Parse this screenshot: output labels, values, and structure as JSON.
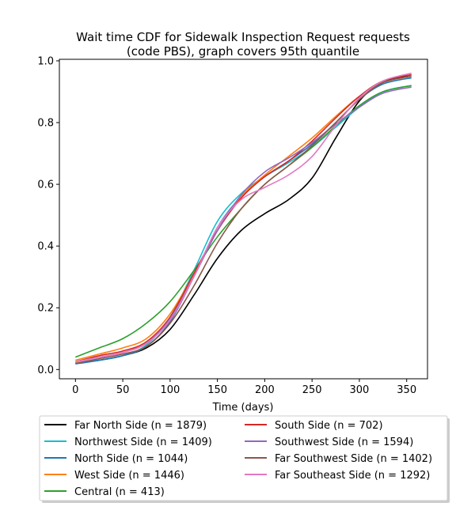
{
  "chart_data": {
    "type": "line",
    "title_line1": "Wait time CDF for Sidewalk Inspection Request  requests",
    "title_line2": "(code PBS), graph covers 95th quantile",
    "xlabel": "Time (days)",
    "ylabel": "",
    "xlim": [
      -17,
      372
    ],
    "ylim": [
      -0.03,
      1.005
    ],
    "xticks": [
      0,
      50,
      100,
      150,
      200,
      250,
      300,
      350
    ],
    "yticks": [
      0.0,
      0.2,
      0.4,
      0.6,
      0.8,
      1.0
    ],
    "grid": false,
    "legend_position": "below-plot",
    "series": [
      {
        "name": "Far North Side (n = 1879)",
        "color": "#000000",
        "x": [
          0,
          25,
          50,
          75,
          100,
          125,
          150,
          175,
          200,
          225,
          250,
          275,
          300,
          325,
          355
        ],
        "y": [
          0.02,
          0.03,
          0.045,
          0.07,
          0.13,
          0.24,
          0.36,
          0.45,
          0.505,
          0.55,
          0.62,
          0.75,
          0.87,
          0.93,
          0.955
        ]
      },
      {
        "name": "Northwest Side (n = 1409)",
        "color": "#17becf",
        "x": [
          0,
          25,
          50,
          75,
          100,
          125,
          150,
          175,
          200,
          225,
          250,
          275,
          300,
          325,
          355
        ],
        "y": [
          0.02,
          0.03,
          0.045,
          0.08,
          0.17,
          0.32,
          0.48,
          0.57,
          0.625,
          0.67,
          0.72,
          0.785,
          0.85,
          0.9,
          0.92
        ]
      },
      {
        "name": "North Side (n = 1044)",
        "color": "#1f77b4",
        "x": [
          0,
          25,
          50,
          75,
          100,
          125,
          150,
          175,
          200,
          225,
          250,
          275,
          300,
          325,
          355
        ],
        "y": [
          0.018,
          0.03,
          0.045,
          0.075,
          0.155,
          0.3,
          0.46,
          0.56,
          0.625,
          0.675,
          0.73,
          0.8,
          0.875,
          0.925,
          0.945
        ]
      },
      {
        "name": "West Side (n = 1446)",
        "color": "#ff7f0e",
        "x": [
          0,
          25,
          50,
          75,
          100,
          125,
          150,
          175,
          200,
          225,
          250,
          275,
          300,
          325,
          355
        ],
        "y": [
          0.03,
          0.05,
          0.07,
          0.1,
          0.18,
          0.31,
          0.45,
          0.56,
          0.63,
          0.69,
          0.75,
          0.82,
          0.885,
          0.93,
          0.95
        ]
      },
      {
        "name": "Central (n = 413)",
        "color": "#2ca02c",
        "x": [
          0,
          25,
          50,
          75,
          100,
          125,
          150,
          175,
          200,
          225,
          250,
          275,
          300,
          325,
          355
        ],
        "y": [
          0.04,
          0.07,
          0.1,
          0.15,
          0.22,
          0.32,
          0.43,
          0.52,
          0.6,
          0.66,
          0.72,
          0.79,
          0.855,
          0.9,
          0.92
        ]
      },
      {
        "name": "South Side (n = 702)",
        "color": "#d62728",
        "x": [
          0,
          25,
          50,
          75,
          100,
          125,
          150,
          175,
          200,
          225,
          250,
          275,
          300,
          325,
          355
        ],
        "y": [
          0.025,
          0.045,
          0.06,
          0.09,
          0.17,
          0.31,
          0.45,
          0.555,
          0.625,
          0.675,
          0.74,
          0.815,
          0.885,
          0.935,
          0.955
        ]
      },
      {
        "name": "Southwest Side (n = 1594)",
        "color": "#9467bd",
        "x": [
          0,
          25,
          50,
          75,
          100,
          125,
          150,
          175,
          200,
          225,
          250,
          275,
          300,
          325,
          355
        ],
        "y": [
          0.025,
          0.04,
          0.055,
          0.085,
          0.165,
          0.3,
          0.45,
          0.565,
          0.64,
          0.685,
          0.735,
          0.795,
          0.85,
          0.895,
          0.915
        ]
      },
      {
        "name": "Far Southwest Side (n = 1402)",
        "color": "#8c564b",
        "x": [
          0,
          25,
          50,
          75,
          100,
          125,
          150,
          175,
          200,
          225,
          250,
          275,
          300,
          325,
          355
        ],
        "y": [
          0.02,
          0.035,
          0.05,
          0.075,
          0.15,
          0.27,
          0.41,
          0.52,
          0.6,
          0.66,
          0.725,
          0.8,
          0.875,
          0.93,
          0.95
        ]
      },
      {
        "name": "Far Southeast Side (n = 1292)",
        "color": "#e377c2",
        "x": [
          0,
          25,
          50,
          75,
          100,
          125,
          150,
          175,
          200,
          225,
          250,
          275,
          300,
          325,
          355
        ],
        "y": [
          0.025,
          0.04,
          0.055,
          0.085,
          0.16,
          0.3,
          0.46,
          0.55,
          0.59,
          0.63,
          0.69,
          0.79,
          0.88,
          0.935,
          0.96
        ]
      }
    ]
  }
}
